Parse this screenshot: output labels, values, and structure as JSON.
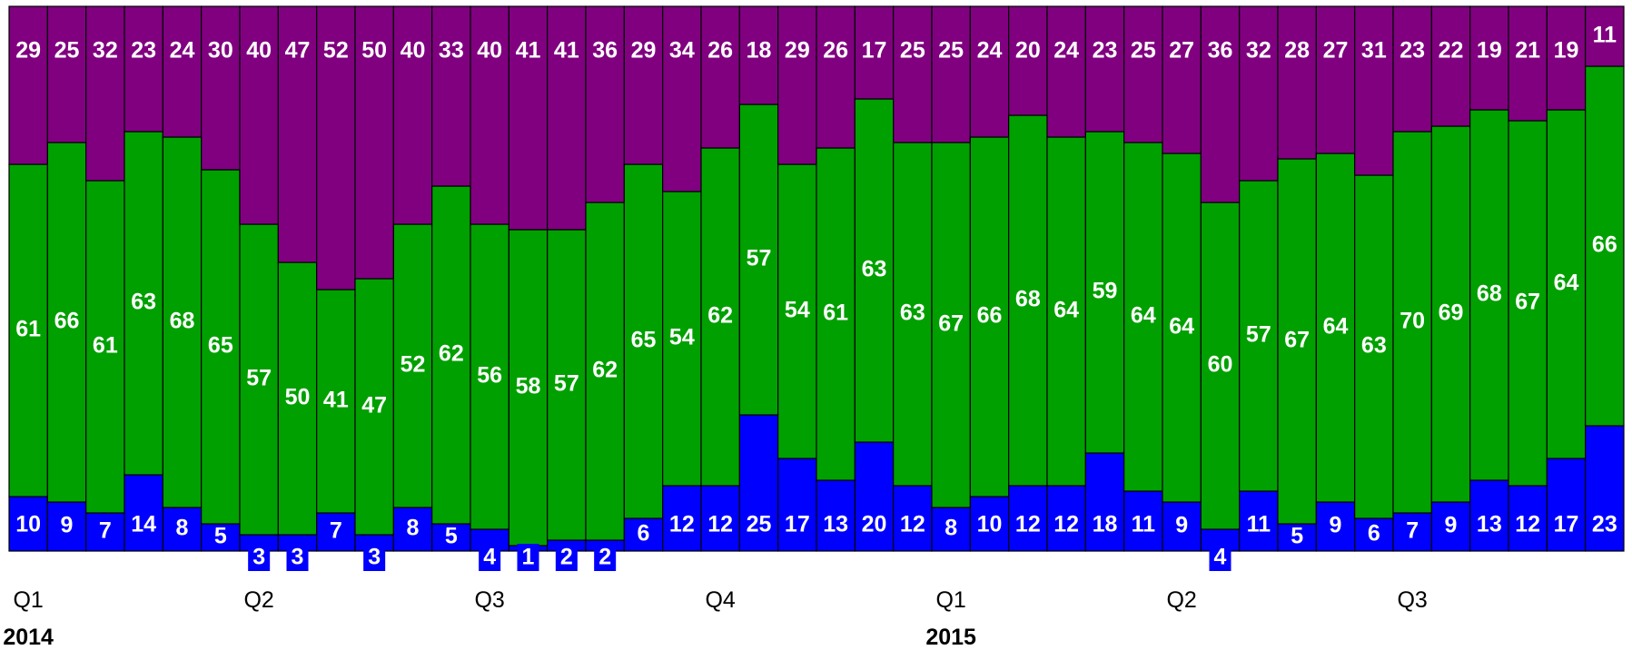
{
  "chart_data": {
    "type": "bar",
    "stacked": true,
    "normalized_to": 100,
    "series": [
      {
        "color": "#0000ff",
        "values": [
          10,
          9,
          7,
          14,
          8,
          5,
          3,
          3,
          7,
          3,
          8,
          5,
          4,
          1,
          2,
          2,
          6,
          12,
          12,
          25,
          17,
          13,
          20,
          12,
          8,
          10,
          12,
          12,
          18,
          11,
          9,
          4,
          11,
          5,
          9,
          6,
          7,
          9,
          13,
          12,
          17,
          23
        ]
      },
      {
        "color": "#00a000",
        "values": [
          61,
          66,
          61,
          63,
          68,
          65,
          57,
          50,
          41,
          47,
          52,
          62,
          56,
          58,
          57,
          62,
          65,
          54,
          62,
          57,
          54,
          61,
          63,
          63,
          67,
          66,
          68,
          64,
          59,
          64,
          64,
          60,
          57,
          67,
          64,
          63,
          70,
          69,
          68,
          67,
          64,
          66
        ]
      },
      {
        "color": "#800080",
        "values": [
          29,
          25,
          32,
          23,
          24,
          30,
          40,
          47,
          52,
          50,
          40,
          33,
          40,
          41,
          41,
          36,
          29,
          34,
          26,
          18,
          29,
          26,
          17,
          25,
          25,
          24,
          20,
          24,
          23,
          25,
          27,
          36,
          32,
          28,
          27,
          31,
          23,
          22,
          19,
          21,
          19,
          11
        ]
      }
    ],
    "x_ticks": [
      {
        "bar_index": 0,
        "label": "Q1"
      },
      {
        "bar_index": 6,
        "label": "Q2"
      },
      {
        "bar_index": 12,
        "label": "Q3"
      },
      {
        "bar_index": 18,
        "label": "Q4"
      },
      {
        "bar_index": 24,
        "label": "Q1"
      },
      {
        "bar_index": 30,
        "label": "Q2"
      },
      {
        "bar_index": 36,
        "label": "Q3"
      }
    ],
    "year_labels": [
      {
        "bar_index": 0,
        "label": "2014"
      },
      {
        "bar_index": 24,
        "label": "2015"
      }
    ],
    "grid": false,
    "legend": "none"
  }
}
